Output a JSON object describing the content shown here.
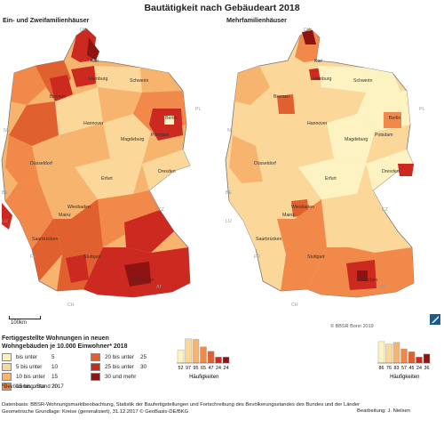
{
  "title": "Bautätigkeit nach Gebäudeart 2018",
  "maps": [
    {
      "title": "Ein- und Zweifamilienhäuser"
    },
    {
      "title": "Mehrfamilienhäuser"
    }
  ],
  "countries": [
    "DK",
    "PL",
    "NL",
    "BE",
    "LU",
    "CZ",
    "FR",
    "AT",
    "CH"
  ],
  "cities": [
    "Kiel",
    "Schwerin",
    "Hamburg",
    "Bremen",
    "Hannover",
    "Berlin",
    "Potsdam",
    "Magdeburg",
    "Düsseldorf",
    "Erfurt",
    "Dresden",
    "Wiesbaden",
    "Mainz",
    "Saarbrücken",
    "Stuttgart",
    "München"
  ],
  "scale_label": "100km",
  "copyright": "© BBSR Bonn 2019",
  "legend": {
    "title_line1": "Fertiggestellte Wohnungen in neuen",
    "title_line2": "Wohngebäuden je 10.000 Einwohner* 2018",
    "classes": [
      {
        "label": "bis unter",
        "value": "5",
        "color": "#fdf3c2"
      },
      {
        "label": "5 bis unter",
        "value": "10",
        "color": "#fbd79a"
      },
      {
        "label": "10 bis unter",
        "value": "15",
        "color": "#f7b46e"
      },
      {
        "label": "15 bis unter",
        "value": "20",
        "color": "#f0894a"
      },
      {
        "label": "20 bis unter",
        "value": "25",
        "color": "#e0602f"
      },
      {
        "label": "25 bis unter",
        "value": "30",
        "color": "#cc2a20"
      },
      {
        "label": "30 und mehr",
        "value": "",
        "color": "#8e1414"
      }
    ]
  },
  "histograms": [
    {
      "counts": [
        52,
        97,
        95,
        65,
        47,
        24,
        24
      ],
      "label": "Häufigkeiten"
    },
    {
      "counts": [
        86,
        76,
        83,
        57,
        45,
        24,
        36
      ],
      "label": "Häufigkeiten"
    }
  ],
  "footnote": "*Bevölkerung: Stand 2017",
  "sources": {
    "line1": "Datenbasis: BBSR-Wohnungsmarktbeobachtung, Statistik der Baufertigstellungen und Fortschreibung des Bevölkerungsstandes des Bundes und der Länder",
    "line2": "Geometrische Grundlage: Kreise (generalisiert), 31.12.2017 © GeoBasis-DE/BKG"
  },
  "editor": "Bearbeitung: J. Nielsen",
  "colors": {
    "class1": "#fdf3c2",
    "class2": "#fbd79a",
    "class3": "#f7b46e",
    "class4": "#f0894a",
    "class5": "#e0602f",
    "class6": "#cc2a20",
    "class7": "#8e1414"
  }
}
